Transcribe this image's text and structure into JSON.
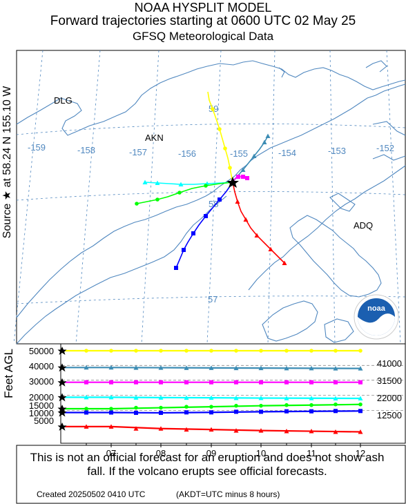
{
  "header": {
    "line1": "NOAA HYSPLIT MODEL",
    "line2": "Forward trajectories starting at 0600 UTC 02 May 25",
    "line3": "GFSQ Meteorological Data"
  },
  "side_label": "Source ★ at   58.24 N  155.10 W",
  "map": {
    "places": [
      "DLG",
      "AKN",
      "ADQ"
    ],
    "lon_labels": [
      "-159",
      "-158",
      "-157",
      "-156",
      "-155",
      "-154",
      "-153",
      "-152"
    ],
    "lat_labels": [
      "59",
      "58",
      "57"
    ],
    "logo_text": "noaa",
    "source": {
      "lat": 58.24,
      "lon": -155.1
    }
  },
  "colors": {
    "yellow": "#ffff00",
    "steelblue": "#3c8cb4",
    "magenta": "#ff00ff",
    "cyan": "#00ffff",
    "green": "#00ff00",
    "blue": "#0000ff",
    "red": "#ff0000",
    "map_line": "#4f87bf"
  },
  "vertical": {
    "ylabel": "Feet AGL",
    "y_ticks": [
      "50000",
      "40000",
      "30000",
      "20000",
      "15000",
      "10000",
      "5000"
    ],
    "x_ticks": [
      "07",
      "08",
      "09",
      "10",
      "11",
      "12"
    ],
    "right_labels": [
      "41000",
      "31500",
      "22000",
      "12500"
    ]
  },
  "chart_data": {
    "type": "line",
    "title": "Forward trajectories starting at 0600 UTC 02 May 25",
    "xlabel": "",
    "ylabel": "Feet AGL",
    "x": [
      "07",
      "08",
      "09",
      "10",
      "11",
      "12"
    ],
    "ylim": [
      0,
      50000
    ],
    "series": [
      {
        "color": "yellow",
        "values": [
          50000,
          50000,
          50000,
          50000,
          50000,
          50000
        ]
      },
      {
        "color": "steelblue",
        "values": [
          41000,
          40900,
          40800,
          40700,
          40600,
          40500
        ]
      },
      {
        "color": "magenta",
        "values": [
          31500,
          31500,
          31500,
          31500,
          31500,
          31500
        ]
      },
      {
        "color": "cyan",
        "values": [
          22000,
          21800,
          21700,
          21500,
          21400,
          21300
        ]
      },
      {
        "color": "green",
        "values": [
          15000,
          15600,
          16200,
          16800,
          17200,
          17600
        ]
      },
      {
        "color": "blue",
        "values": [
          12500,
          12300,
          12600,
          13000,
          13300,
          13500
        ]
      },
      {
        "color": "red",
        "values": [
          4200,
          3600,
          3300,
          3000,
          2800,
          2600
        ]
      }
    ]
  },
  "footer": {
    "disclaimer": "This is not an official forecast for an eruption and does not show ash fall. If the volcano erupts see official forecasts.",
    "created": "Created 20250502 0410 UTC",
    "note": "(AKDT=UTC minus 8 hours)"
  }
}
